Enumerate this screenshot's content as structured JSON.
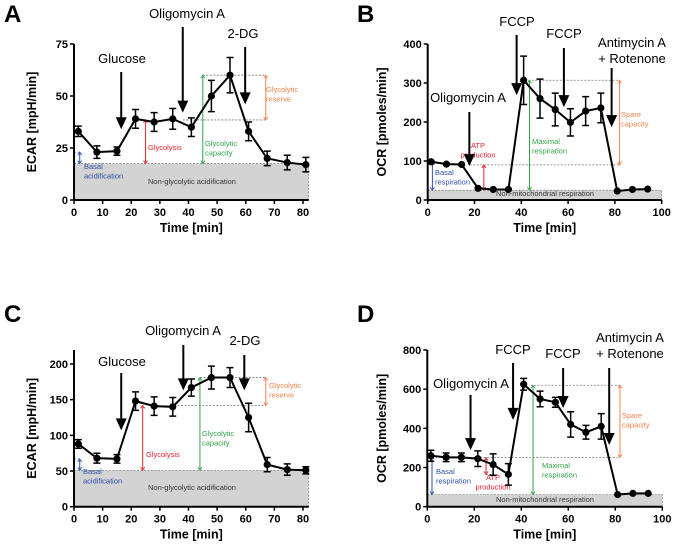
{
  "colors": {
    "basal": "#2b4fa8",
    "glycolysis": "#e8202a",
    "capacity": "#2fa347",
    "reserve": "#f4804a",
    "baseline_fill": "#d3d3d3",
    "line": "#000000"
  },
  "chart_data": [
    {
      "panel_label": "A",
      "type": "line",
      "xlabel": "Time [min]",
      "ylabel": "ECAR [mpH/min]",
      "xlim": [
        0,
        82
      ],
      "ylim": [
        0,
        75
      ],
      "xticks": [
        0,
        10,
        20,
        30,
        40,
        50,
        60,
        70,
        80
      ],
      "yticks": [
        0,
        25,
        50,
        75
      ],
      "x": [
        1.5,
        8,
        15,
        21.5,
        28,
        34.5,
        41,
        48,
        54.5,
        61,
        67.5,
        74.5,
        81
      ],
      "y": [
        33,
        23,
        23.5,
        39,
        37.5,
        39,
        35,
        50,
        60,
        33,
        20,
        18,
        17
      ],
      "error": [
        2.5,
        3,
        2,
        4.5,
        4.5,
        5,
        4.5,
        7.5,
        8.5,
        4.5,
        3.5,
        3.5,
        3.5
      ],
      "baseline": {
        "value": 17.5,
        "label": "Non-glycolytic acidification"
      },
      "treatments": [
        {
          "label": [
            "Glucose"
          ],
          "x": 16.5,
          "tip": 34
        },
        {
          "label": [
            "Oligomycin A"
          ],
          "x": 38,
          "tip": 42
        },
        {
          "label": [
            "2-DG"
          ],
          "x": 59.8,
          "tip": 46
        }
      ],
      "brackets": [
        {
          "label": [
            "Basal",
            "acidification"
          ],
          "color": "basal",
          "x": 2,
          "from": 17.5,
          "to": 23
        },
        {
          "label": [
            "Glycolysis"
          ],
          "color": "glycolysis",
          "x": 25,
          "from": 17.5,
          "to": 38.5
        },
        {
          "label": [
            "Glycolytic",
            "capacity"
          ],
          "color": "capacity",
          "x": 45,
          "from": 17.5,
          "to": 60
        },
        {
          "label": [
            "Glycolytic",
            "reserve"
          ],
          "color": "reserve",
          "x": 67,
          "from": 38.5,
          "to": 60
        }
      ],
      "ref_lines": [
        {
          "y": 23,
          "x0": 0,
          "x1": 2
        },
        {
          "y": 38.5,
          "x0": 38,
          "x1": 67
        },
        {
          "y": 60,
          "x0": 45,
          "x1": 67
        }
      ]
    },
    {
      "panel_label": "B",
      "type": "line",
      "xlabel": "Time [min]",
      "ylabel": "OCR [pmoles/min]",
      "xlim": [
        0,
        100
      ],
      "ylim": [
        0,
        400
      ],
      "xticks": [
        0,
        20,
        40,
        60,
        80,
        100
      ],
      "yticks": [
        0,
        100,
        200,
        300,
        400
      ],
      "x": [
        1.5,
        8,
        14.5,
        21.5,
        28,
        34.5,
        41,
        48,
        54.5,
        61,
        67.5,
        74,
        81,
        87.5,
        94
      ],
      "y": [
        98,
        92,
        91,
        30,
        27,
        27,
        307,
        260,
        232,
        199,
        228,
        236,
        23,
        27,
        28
      ],
      "error": [
        0,
        0,
        0,
        0,
        0,
        0,
        62,
        50,
        42,
        35,
        37,
        38,
        0,
        0,
        0
      ],
      "baseline": {
        "value": 25,
        "label": "Non-mitochondrial respiration"
      },
      "treatments": [
        {
          "label": [
            "Oligomycin A"
          ],
          "x": 17.8,
          "tip": 87
        },
        {
          "label": [
            "FCCP"
          ],
          "x": 38,
          "tip": 269
        },
        {
          "label": [
            "FCCP"
          ],
          "x": 58.2,
          "tip": 238
        },
        {
          "label": [
            "Antimycin A",
            "+ Rotenone"
          ],
          "x": 78.6,
          "tip": 187
        }
      ],
      "brackets": [
        {
          "label": [
            "Basal",
            "respiration"
          ],
          "color": "basal",
          "x": 2,
          "from": 25,
          "to": 98
        },
        {
          "label": [
            "ATP",
            "production"
          ],
          "color": "glycolysis",
          "x": 24,
          "from": 25,
          "to": 90
        },
        {
          "label": [
            "Maximal",
            "respiration"
          ],
          "color": "capacity",
          "x": 43.5,
          "from": 25,
          "to": 307
        },
        {
          "label": [
            "Spare",
            "capacity"
          ],
          "color": "reserve",
          "x": 82,
          "from": 90,
          "to": 307
        }
      ],
      "ref_lines": [
        {
          "y": 90,
          "x0": 18,
          "x1": 82
        },
        {
          "y": 307,
          "x0": 43,
          "x1": 82
        }
      ]
    },
    {
      "panel_label": "C",
      "type": "line",
      "xlabel": "Time [min]",
      "ylabel": "ECAR [mpH/min]",
      "xlim": [
        0,
        82
      ],
      "ylim": [
        0,
        220
      ],
      "xticks": [
        0,
        10,
        20,
        30,
        40,
        50,
        60,
        70,
        80
      ],
      "yticks": [
        0,
        50,
        100,
        150,
        200
      ],
      "x": [
        1.5,
        8,
        15,
        21.5,
        28,
        34.5,
        41,
        48,
        54.5,
        61,
        67.5,
        74.5,
        81
      ],
      "y": [
        88,
        68,
        67,
        148,
        141,
        140,
        167,
        181,
        181,
        125,
        59,
        52,
        51
      ],
      "error": [
        6,
        7,
        6,
        13,
        13,
        13,
        12,
        16,
        14,
        20,
        10,
        8,
        5
      ],
      "baseline": {
        "value": 51,
        "label": "Non-glycolytic acidification"
      },
      "treatments": [
        {
          "label": [
            "Glucose"
          ],
          "x": 16.5,
          "tip": 107
        },
        {
          "label": [
            "Oligomycin A"
          ],
          "x": 38.2,
          "tip": 163
        },
        {
          "label": [
            "2-DG"
          ],
          "x": 59.5,
          "tip": 163
        }
      ],
      "brackets": [
        {
          "label": [
            "Basal",
            "acidification"
          ],
          "color": "basal",
          "x": 2,
          "from": 51,
          "to": 67
        },
        {
          "label": [
            "Glycolysis"
          ],
          "color": "glycolysis",
          "x": 24,
          "from": 51,
          "to": 142
        },
        {
          "label": [
            "Glycolytic",
            "capacity"
          ],
          "color": "capacity",
          "x": 44,
          "from": 51,
          "to": 181
        },
        {
          "label": [
            "Glycolytic",
            "reserve"
          ],
          "color": "reserve",
          "x": 67,
          "from": 142,
          "to": 181
        }
      ],
      "ref_lines": [
        {
          "y": 67,
          "x0": 0,
          "x1": 2
        },
        {
          "y": 142,
          "x0": 35,
          "x1": 67
        },
        {
          "y": 181,
          "x0": 44,
          "x1": 67
        }
      ]
    },
    {
      "panel_label": "D",
      "type": "line",
      "xlabel": "Time [min]",
      "ylabel": "OCR [pmoles/min]",
      "xlim": [
        0,
        100
      ],
      "ylim": [
        0,
        800
      ],
      "xticks": [
        0,
        20,
        40,
        60,
        80,
        100
      ],
      "yticks": [
        0,
        200,
        400,
        600,
        800
      ],
      "x": [
        1.5,
        8,
        14.5,
        21.5,
        28,
        34.5,
        41,
        48,
        54.5,
        61,
        67.5,
        74,
        81,
        87.5,
        94
      ],
      "y": [
        260,
        252,
        252,
        245,
        215,
        165,
        625,
        550,
        533,
        420,
        380,
        410,
        62,
        68,
        68
      ],
      "error": [
        28,
        22,
        22,
        40,
        55,
        55,
        30,
        40,
        25,
        65,
        35,
        65,
        0,
        0,
        0
      ],
      "baseline": {
        "value": 62,
        "label": "Non-mitochondrial respiration"
      },
      "treatments": [
        {
          "label": [
            "Oligomycin A"
          ],
          "x": 18.4,
          "tip": 289
        },
        {
          "label": [
            "FCCP"
          ],
          "x": 36.5,
          "tip": 443
        },
        {
          "label": [
            "FCCP"
          ],
          "x": 57.8,
          "tip": 504
        },
        {
          "label": [
            "Antimycin A",
            "+ Rotenone"
          ],
          "x": 77.4,
          "tip": 315
        }
      ],
      "brackets": [
        {
          "label": [
            "Basal",
            "respiration"
          ],
          "color": "basal",
          "x": 2,
          "from": 62,
          "to": 258
        },
        {
          "label": [
            "ATP",
            "production"
          ],
          "color": "glycolysis",
          "x": 25,
          "from": 165,
          "to": 250
        },
        {
          "label": [
            "Maximal",
            "respiration"
          ],
          "color": "capacity",
          "x": 45,
          "from": 62,
          "to": 620
        },
        {
          "label": [
            "Spare",
            "capacity"
          ],
          "color": "reserve",
          "x": 82,
          "from": 252,
          "to": 620
        }
      ],
      "ref_lines": [
        {
          "y": 252,
          "x0": 18,
          "x1": 82
        },
        {
          "y": 620,
          "x0": 44,
          "x1": 82
        },
        {
          "y": 165,
          "x0": 25,
          "x1": 30
        }
      ]
    }
  ]
}
